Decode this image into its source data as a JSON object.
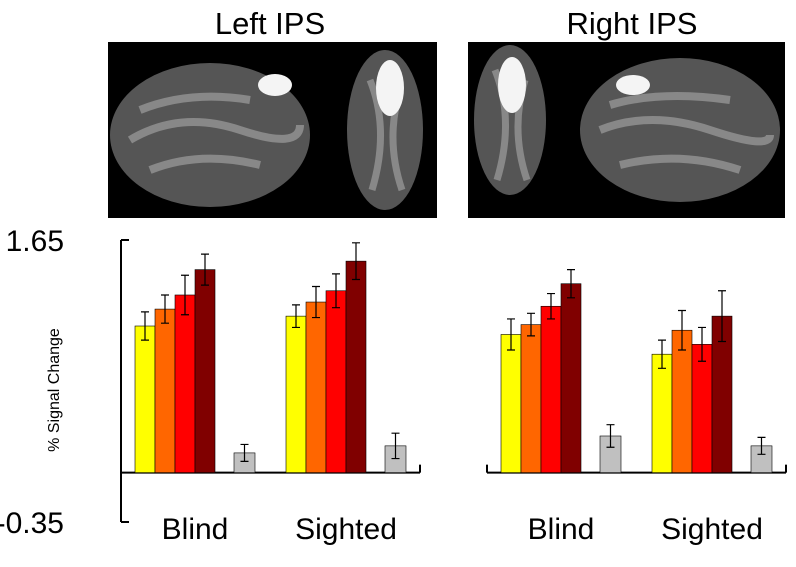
{
  "chart_data": [
    {
      "type": "bar",
      "title": "Left IPS",
      "y_label": "% Signal Change",
      "categories": [
        "Blind",
        "Sighted"
      ],
      "series": [
        {
          "color": "#ffff00",
          "values": [
            1.04,
            1.11
          ],
          "errors": [
            0.1,
            0.08
          ]
        },
        {
          "color": "#ff6600",
          "values": [
            1.16,
            1.21
          ],
          "errors": [
            0.1,
            0.11
          ]
        },
        {
          "color": "#ff0000",
          "values": [
            1.26,
            1.29
          ],
          "errors": [
            0.14,
            0.12
          ]
        },
        {
          "color": "#800000",
          "values": [
            1.44,
            1.5
          ],
          "errors": [
            0.11,
            0.13
          ]
        },
        {
          "color": "#c0c0c0",
          "values": [
            0.14,
            0.19
          ],
          "errors": [
            0.06,
            0.09
          ]
        }
      ],
      "ylim": [
        -0.35,
        1.65
      ],
      "yticks": [
        -0.35,
        1.65
      ]
    },
    {
      "type": "bar",
      "title": "Right IPS",
      "categories": [
        "Blind",
        "Sighted"
      ],
      "series": [
        {
          "color": "#ffff00",
          "values": [
            0.98,
            0.84
          ],
          "errors": [
            0.11,
            0.1
          ]
        },
        {
          "color": "#ff6600",
          "values": [
            1.05,
            1.01
          ],
          "errors": [
            0.08,
            0.14
          ]
        },
        {
          "color": "#ff0000",
          "values": [
            1.18,
            0.91
          ],
          "errors": [
            0.09,
            0.12
          ]
        },
        {
          "color": "#800000",
          "values": [
            1.34,
            1.11
          ],
          "errors": [
            0.1,
            0.18
          ]
        },
        {
          "color": "#c0c0c0",
          "values": [
            0.26,
            0.19
          ],
          "errors": [
            0.08,
            0.06
          ]
        }
      ],
      "ylim": [
        -0.35,
        1.65
      ]
    }
  ]
}
